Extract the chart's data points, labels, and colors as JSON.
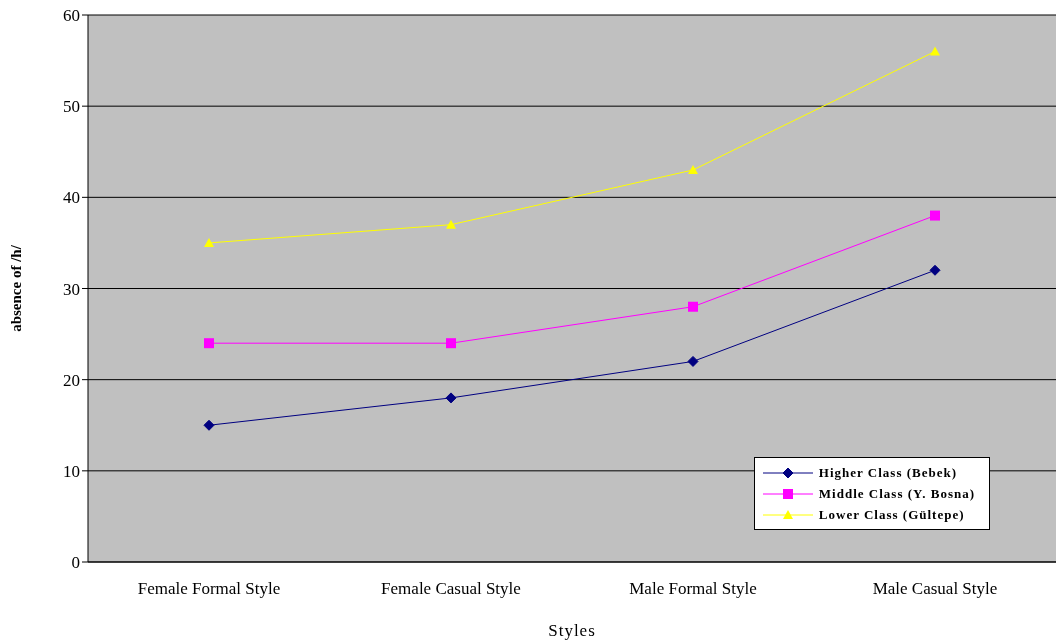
{
  "chart_data": {
    "type": "line",
    "xlabel": "Styles",
    "ylabel": "absence of /h/",
    "categories": [
      "Female Formal Style",
      "Female Casual Style",
      "Male Formal Style",
      "Male Casual Style"
    ],
    "series": [
      {
        "name": "Higher Class (Bebek)",
        "color": "#000080",
        "marker": "diamond",
        "values": [
          15,
          18,
          22,
          32
        ]
      },
      {
        "name": "Middle Class (Y. Bosna)",
        "color": "#ff00ff",
        "marker": "square",
        "values": [
          24,
          24,
          28,
          38
        ]
      },
      {
        "name": "Lower Class  (Gültepe)",
        "color": "#ffff00",
        "marker": "triangle",
        "values": [
          35,
          37,
          43,
          56
        ]
      }
    ],
    "ylim": [
      0,
      60
    ],
    "yticks": [
      0,
      10,
      20,
      30,
      40,
      50,
      60
    ],
    "grid": "y",
    "legend": "bottom right"
  }
}
